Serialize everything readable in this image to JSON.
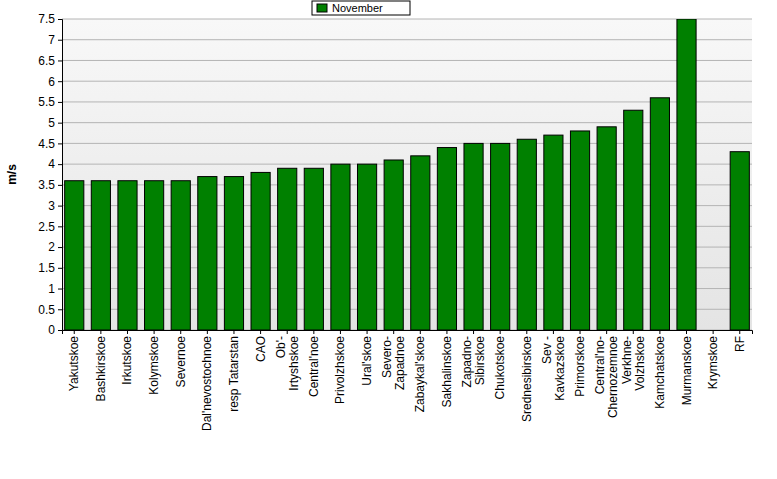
{
  "chart_data": {
    "type": "bar",
    "y_label": "m/s",
    "categories": [
      "Yakutskoe",
      "Bashkirskoe",
      "Irkutskoe",
      "Kolymskoe",
      "Severnoe",
      "Dal'nevostochnoe",
      "resp Tatarstan",
      "CAO",
      "Ob'-\nIrtyshskoe",
      "Central'noe",
      "Privolzhskoe",
      "Ural'skoe",
      "Severo-\nZapadnoe",
      "Zabaykal'skoe",
      "Sakhalinskoe",
      "Zapadno-\nSibirskoe",
      "Chukotskoe",
      "Srednesibirskoe",
      "Sev -\nKavkazskoe",
      "Primorskoe",
      "Central'no-\nChernozemnoe",
      "Verkhne-\nVolzhskoe",
      "Kamchatskoe",
      "Murmanskoe",
      "Krymskoe",
      "RF"
    ],
    "series": [
      {
        "name": "November",
        "color": "#008000",
        "values": [
          3.6,
          3.6,
          3.6,
          3.6,
          3.6,
          3.7,
          3.7,
          3.8,
          3.9,
          3.9,
          4.0,
          4.0,
          4.1,
          4.2,
          4.4,
          4.5,
          4.5,
          4.6,
          4.7,
          4.8,
          4.9,
          5.3,
          5.6,
          7.5,
          null,
          4.3
        ]
      }
    ],
    "ylim": [
      0,
      7.5
    ],
    "yticks": [
      0,
      0.5,
      1,
      1.5,
      2,
      2.5,
      3,
      3.5,
      4,
      4.5,
      5,
      5.5,
      6,
      6.5,
      7,
      7.5
    ],
    "grid": true,
    "legend": "top"
  }
}
